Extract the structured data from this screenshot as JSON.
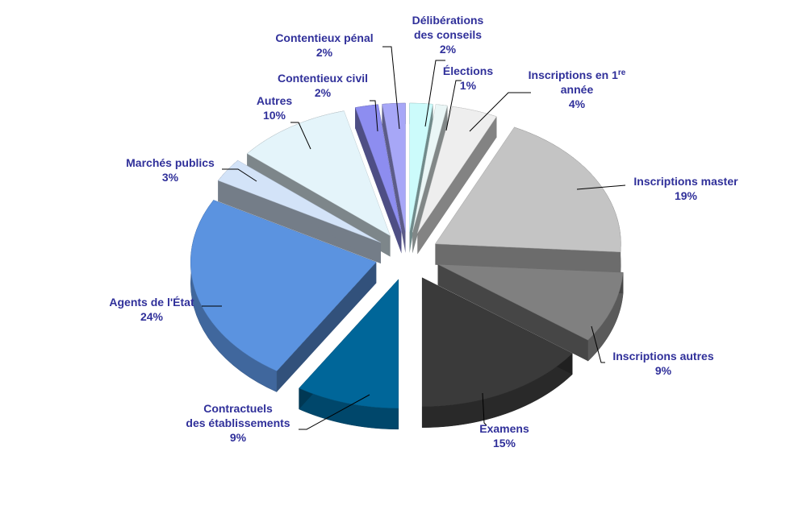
{
  "chart_data": {
    "type": "pie",
    "title": "",
    "style": "3d-exploded",
    "slices": [
      {
        "label": "Délibérations des conseils",
        "lines": [
          "Délibérations",
          "des conseils"
        ],
        "pct_text": "2%",
        "value": 2,
        "color": "#ccfbfb"
      },
      {
        "label": "Élections",
        "lines": [
          "Élections"
        ],
        "pct_text": "1%",
        "value": 1,
        "color": "#eaf6f6"
      },
      {
        "label": "Inscriptions en 1re année",
        "lines": [
          "Inscriptions en 1|re",
          "année"
        ],
        "pct_text": "4%",
        "value": 4,
        "color": "#eeeeee"
      },
      {
        "label": "Inscriptions master",
        "lines": [
          "Inscriptions master"
        ],
        "pct_text": "19%",
        "value": 19,
        "color": "#c4c4c4"
      },
      {
        "label": "Inscriptions autres",
        "lines": [
          "Inscriptions autres"
        ],
        "pct_text": "9%",
        "value": 9,
        "color": "#808080"
      },
      {
        "label": "Examens",
        "lines": [
          "Examens"
        ],
        "pct_text": "15%",
        "value": 15,
        "color": "#3a3a3a"
      },
      {
        "label": "Contractuels des établissements",
        "lines": [
          "Contractuels",
          "des établissements"
        ],
        "pct_text": "9%",
        "value": 9,
        "color": "#006699"
      },
      {
        "label": "Agents de l'État",
        "lines": [
          "Agents de l'État"
        ],
        "pct_text": "24%",
        "value": 24,
        "color": "#5b93e0"
      },
      {
        "label": "Marchés publics",
        "lines": [
          "Marchés publics"
        ],
        "pct_text": "3%",
        "value": 3,
        "color": "#d3e3f8"
      },
      {
        "label": "Autres",
        "lines": [
          "Autres"
        ],
        "pct_text": "10%",
        "value": 10,
        "color": "#e4f4fa"
      },
      {
        "label": "Contentieux civil",
        "lines": [
          "Contentieux civil"
        ],
        "pct_text": "2%",
        "value": 2,
        "color": "#8d8df0"
      },
      {
        "label": "Contentieux pénal",
        "lines": [
          "Contentieux pénal"
        ],
        "pct_text": "2%",
        "value": 2,
        "color": "#a7a7f7"
      }
    ],
    "label_color": "#30309a"
  }
}
